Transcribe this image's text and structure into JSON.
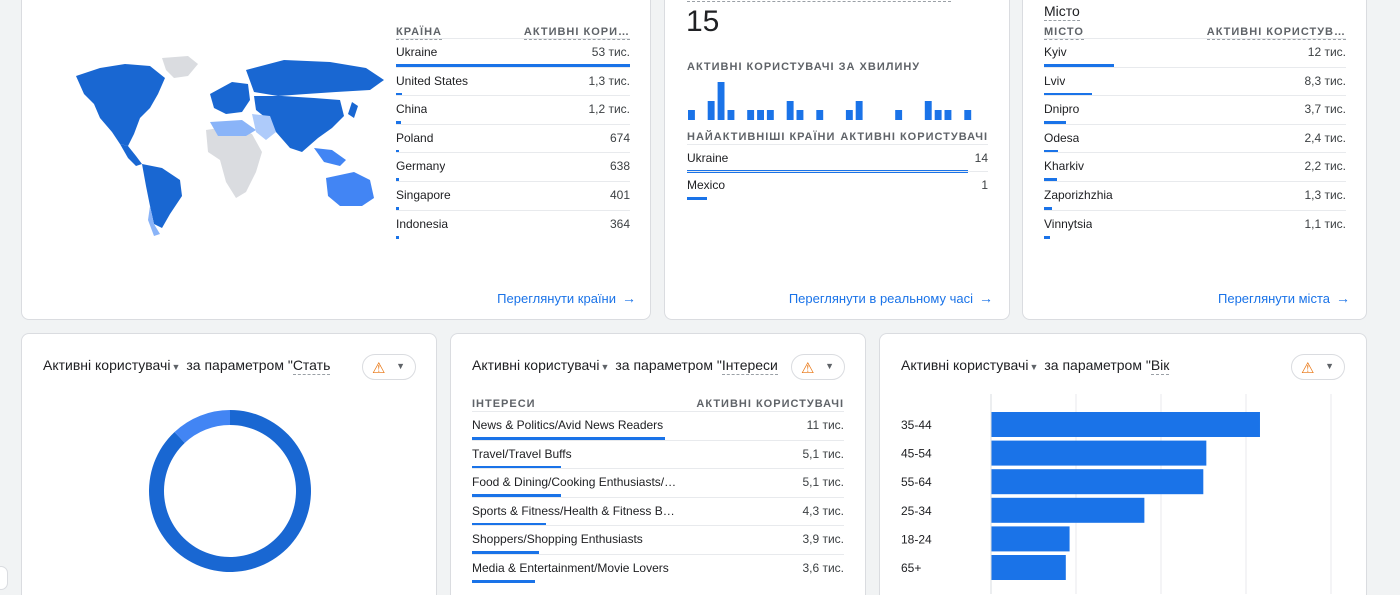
{
  "country_card": {
    "col_header": "Країна",
    "value_header": "Активні кори…",
    "rows": [
      {
        "label": "Ukraine",
        "value": "53 тис.",
        "share": 1.0
      },
      {
        "label": "United States",
        "value": "1,3 тис.",
        "share": 0.025
      },
      {
        "label": "China",
        "value": "1,2 тис.",
        "share": 0.023
      },
      {
        "label": "Poland",
        "value": "674",
        "share": 0.013
      },
      {
        "label": "Germany",
        "value": "638",
        "share": 0.012
      },
      {
        "label": "Singapore",
        "value": "401",
        "share": 0.008
      },
      {
        "label": "Indonesia",
        "value": "364",
        "share": 0.007
      }
    ],
    "link": "Переглянути країни"
  },
  "realtime_card": {
    "big_number": "15",
    "per_minute_label": "Активні користувачі за хвилину",
    "per_minute_values": [
      1,
      0,
      2,
      4,
      1,
      0,
      1,
      1,
      1,
      0,
      2,
      1,
      0,
      1,
      0,
      0,
      1,
      2,
      0,
      0,
      0,
      1,
      0,
      0,
      2,
      1,
      1,
      0,
      1,
      0
    ],
    "col_header": "Найактивніші країни",
    "value_header": "Активні користувачі",
    "rows": [
      {
        "label": "Ukraine",
        "value": "14",
        "share": 1.0
      },
      {
        "label": "Mexico",
        "value": "1",
        "share": 0.07
      }
    ],
    "link": "Переглянути в реальному часі"
  },
  "city_card": {
    "top_label": "Місто",
    "col_header": "Місто",
    "value_header": "Активні користув…",
    "rows": [
      {
        "label": "Kyiv",
        "value": "12 тис.",
        "share": 1.0
      },
      {
        "label": "Lviv",
        "value": "8,3 тис.",
        "share": 0.69
      },
      {
        "label": "Dnipro",
        "value": "3,7 тис.",
        "share": 0.31
      },
      {
        "label": "Odesa",
        "value": "2,4 тис.",
        "share": 0.2
      },
      {
        "label": "Kharkiv",
        "value": "2,2 тис.",
        "share": 0.18
      },
      {
        "label": "Zaporizhzhia",
        "value": "1,3 тис.",
        "share": 0.11
      },
      {
        "label": "Vinnytsia",
        "value": "1,1 тис.",
        "share": 0.09
      }
    ],
    "link": "Переглянути міста"
  },
  "gender_card": {
    "title_metric": "Активні користувачі",
    "title_rest": "за параметром \"",
    "title_param": "Стать",
    "donut_shares": [
      0.88,
      0.12
    ],
    "colors": [
      "#1967d2",
      "#4285f4"
    ]
  },
  "interests_card": {
    "title_metric": "Активні користувачі",
    "title_rest": "за параметром \"",
    "title_param": "Інтереси",
    "col_header": "Інтереси",
    "value_header": "Активні користувачі",
    "rows": [
      {
        "label": "News & Politics/Avid News Readers",
        "value": "11 тис.",
        "share": 0.52
      },
      {
        "label": "Travel/Travel Buffs",
        "value": "5,1 тис.",
        "share": 0.24
      },
      {
        "label": "Food & Dining/Cooking Enthusiasts/…",
        "value": "5,1 тис.",
        "share": 0.24
      },
      {
        "label": "Sports & Fitness/Health & Fitness B…",
        "value": "4,3 тис.",
        "share": 0.2
      },
      {
        "label": "Shoppers/Shopping Enthusiasts",
        "value": "3,9 тис.",
        "share": 0.18
      },
      {
        "label": "Media & Entertainment/Movie Lovers",
        "value": "3,6 тис.",
        "share": 0.17
      }
    ]
  },
  "age_card": {
    "title_metric": "Активні користувачі",
    "title_rest": "за параметром \"",
    "title_param": "Вік",
    "chart_data": {
      "type": "bar",
      "orientation": "horizontal",
      "categories": [
        "35-44",
        "45-54",
        "55-64",
        "25-34",
        "18-24",
        "65+"
      ],
      "values": [
        3.56,
        2.85,
        2.81,
        2.03,
        1.04,
        0.99
      ],
      "xlim": [
        0,
        4.5
      ],
      "grid": true
    }
  }
}
